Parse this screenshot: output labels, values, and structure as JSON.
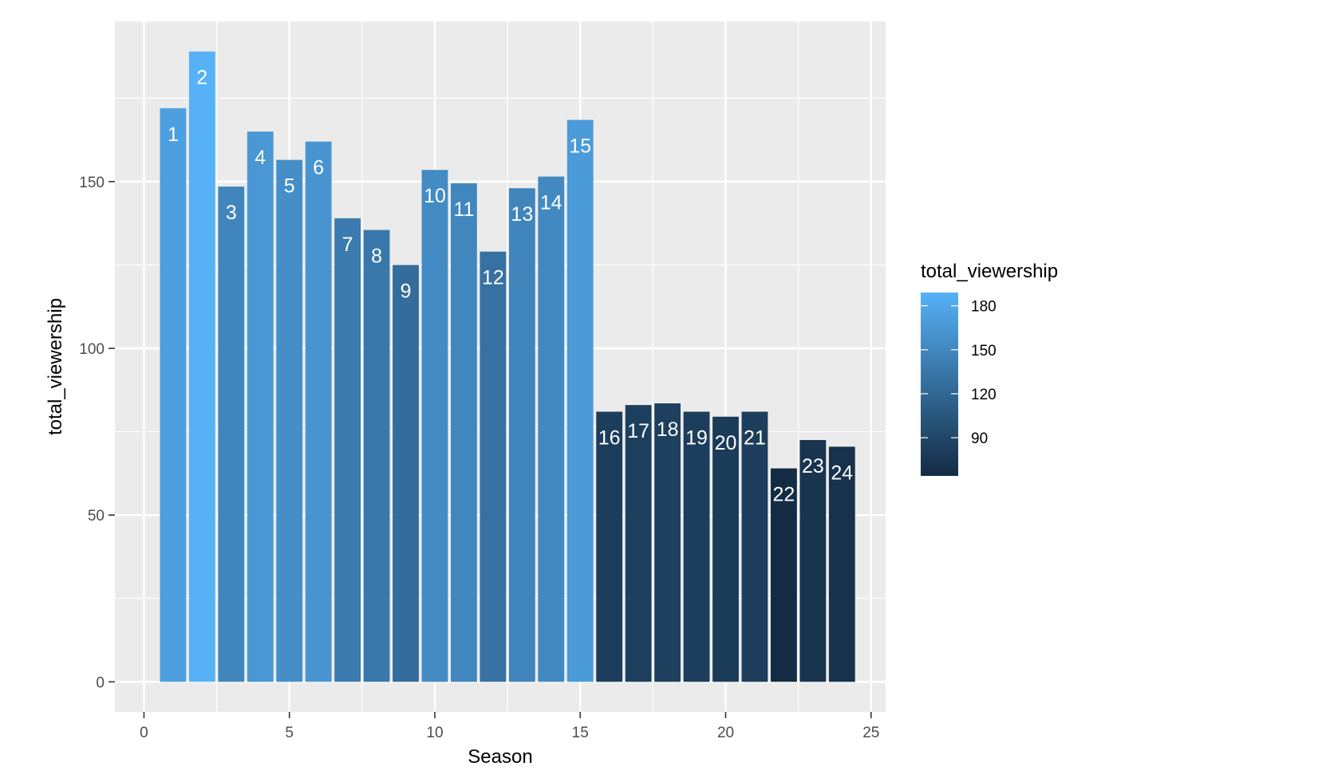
{
  "chart_data": {
    "type": "bar",
    "xlabel": "Season",
    "ylabel": "total_viewership",
    "xlim": [
      -1.0,
      25.5
    ],
    "ylim": [
      -9,
      198
    ],
    "x_ticks": [
      0,
      5,
      10,
      15,
      20,
      25
    ],
    "y_ticks": [
      0,
      50,
      100,
      150
    ],
    "grid": true,
    "legend": {
      "title": "total_viewership",
      "position": "right",
      "ticks": [
        180,
        150,
        120,
        90
      ],
      "range": [
        64,
        189
      ],
      "color_low": "#132B43",
      "color_high": "#56B1F7"
    },
    "x": [
      1,
      2,
      3,
      4,
      5,
      6,
      7,
      8,
      9,
      10,
      11,
      12,
      13,
      14,
      15,
      16,
      17,
      18,
      19,
      20,
      21,
      22,
      23,
      24
    ],
    "labels": [
      "1",
      "2",
      "3",
      "4",
      "5",
      "6",
      "7",
      "8",
      "9",
      "10",
      "11",
      "12",
      "13",
      "14",
      "15",
      "16",
      "17",
      "18",
      "19",
      "20",
      "21",
      "22",
      "23",
      "24"
    ],
    "values": [
      172.0,
      189.0,
      148.5,
      165.0,
      156.5,
      162.0,
      139.0,
      135.5,
      125.0,
      153.5,
      149.5,
      129.0,
      148.0,
      151.5,
      168.5,
      81.0,
      83.0,
      83.5,
      81.0,
      79.5,
      81.0,
      64.0,
      72.5,
      70.5
    ]
  }
}
